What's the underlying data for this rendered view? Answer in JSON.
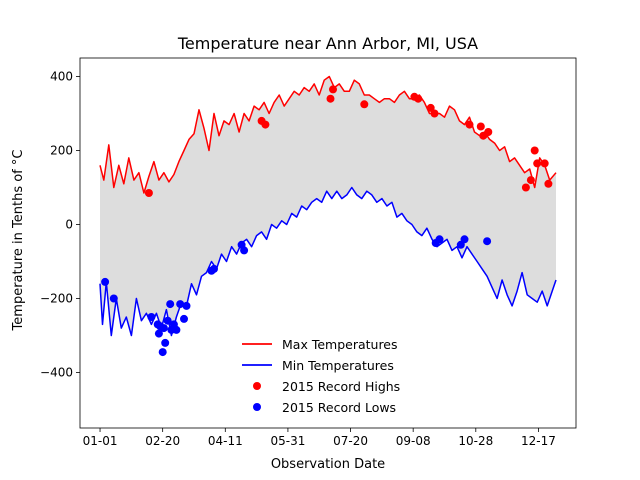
{
  "chart_data": {
    "type": "line",
    "title": "Temperature near Ann Arbor, MI, USA",
    "xlabel": "Observation Date",
    "ylabel": "Temperature in Tenths of °C",
    "x_ticks": [
      "01-01",
      "02-20",
      "04-11",
      "05-31",
      "07-20",
      "09-08",
      "10-28",
      "12-17"
    ],
    "x_tick_days": [
      1,
      51,
      101,
      151,
      201,
      251,
      301,
      351
    ],
    "xlim": [
      -15,
      381
    ],
    "y_ticks": [
      -400,
      -200,
      0,
      200,
      400
    ],
    "ylim": [
      -550,
      450
    ],
    "grid": false,
    "legend_position": "lower center",
    "fill_between": {
      "color": "#dddddd"
    },
    "series": [
      {
        "name": "Max Temperatures",
        "kind": "line",
        "color": "#ff0000",
        "x": [
          1,
          4,
          8,
          12,
          16,
          20,
          24,
          28,
          32,
          36,
          40,
          44,
          48,
          52,
          56,
          60,
          64,
          68,
          72,
          76,
          80,
          84,
          88,
          92,
          96,
          100,
          104,
          108,
          112,
          116,
          120,
          124,
          128,
          132,
          136,
          140,
          144,
          148,
          152,
          156,
          160,
          164,
          168,
          172,
          176,
          180,
          184,
          188,
          192,
          196,
          200,
          204,
          208,
          212,
          216,
          220,
          224,
          228,
          232,
          236,
          240,
          244,
          248,
          252,
          256,
          260,
          264,
          268,
          272,
          276,
          280,
          284,
          288,
          292,
          296,
          300,
          304,
          308,
          312,
          316,
          320,
          324,
          328,
          332,
          336,
          340,
          344,
          348,
          352,
          356,
          360,
          365
        ],
        "values": [
          160,
          120,
          215,
          100,
          160,
          110,
          180,
          120,
          140,
          85,
          130,
          170,
          120,
          140,
          115,
          135,
          170,
          200,
          230,
          245,
          310,
          260,
          200,
          300,
          240,
          280,
          270,
          300,
          250,
          300,
          280,
          320,
          310,
          330,
          300,
          330,
          350,
          320,
          340,
          360,
          350,
          370,
          360,
          380,
          350,
          390,
          400,
          370,
          380,
          360,
          360,
          390,
          380,
          350,
          350,
          340,
          330,
          340,
          340,
          330,
          350,
          360,
          340,
          340,
          350,
          330,
          300,
          300,
          300,
          290,
          320,
          310,
          280,
          270,
          290,
          250,
          240,
          250,
          230,
          220,
          200,
          210,
          170,
          180,
          160,
          140,
          150,
          100,
          180,
          160,
          120,
          140
        ]
      },
      {
        "name": "Min Temperatures",
        "kind": "line",
        "color": "#0000ff",
        "x": [
          1,
          3,
          6,
          10,
          14,
          18,
          22,
          26,
          30,
          34,
          38,
          42,
          46,
          50,
          54,
          58,
          62,
          66,
          70,
          74,
          78,
          82,
          86,
          90,
          94,
          98,
          102,
          106,
          110,
          114,
          118,
          122,
          126,
          130,
          134,
          138,
          142,
          146,
          150,
          154,
          158,
          162,
          166,
          170,
          174,
          178,
          182,
          186,
          190,
          194,
          198,
          202,
          206,
          210,
          214,
          218,
          222,
          226,
          230,
          234,
          238,
          242,
          246,
          250,
          254,
          258,
          262,
          266,
          270,
          274,
          278,
          282,
          286,
          290,
          294,
          298,
          302,
          306,
          310,
          314,
          318,
          322,
          326,
          330,
          334,
          338,
          342,
          346,
          350,
          354,
          358,
          362,
          365
        ],
        "values": [
          -160,
          -270,
          -155,
          -300,
          -200,
          -280,
          -250,
          -300,
          -200,
          -260,
          -240,
          -270,
          -240,
          -280,
          -230,
          -300,
          -250,
          -210,
          -220,
          -160,
          -190,
          -140,
          -130,
          -100,
          -120,
          -80,
          -100,
          -60,
          -80,
          -50,
          -40,
          -60,
          -30,
          -20,
          -40,
          0,
          -10,
          10,
          0,
          30,
          20,
          50,
          40,
          60,
          70,
          60,
          90,
          70,
          90,
          70,
          80,
          100,
          80,
          70,
          90,
          80,
          60,
          70,
          50,
          60,
          20,
          30,
          10,
          0,
          -20,
          -30,
          -10,
          -40,
          -60,
          -50,
          -40,
          -70,
          -60,
          -90,
          -60,
          -80,
          -100,
          -120,
          -140,
          -170,
          -200,
          -150,
          -190,
          -220,
          -180,
          -130,
          -190,
          -200,
          -210,
          -180,
          -220,
          -180,
          -150
        ]
      },
      {
        "name": "2015 Record Highs",
        "kind": "scatter",
        "color": "#ff0000",
        "x": [
          40,
          130,
          133,
          185,
          187,
          212,
          252,
          255,
          265,
          268,
          296,
          305,
          307,
          311,
          341,
          345,
          348,
          350,
          356,
          359
        ],
        "values": [
          85,
          280,
          270,
          340,
          365,
          325,
          345,
          340,
          315,
          300,
          270,
          265,
          240,
          250,
          100,
          120,
          200,
          165,
          165,
          110
        ]
      },
      {
        "name": "2015 Record Lows",
        "kind": "scatter",
        "color": "#0000ff",
        "x": [
          5,
          12,
          42,
          47,
          48,
          49,
          51,
          52,
          53,
          55,
          57,
          58,
          60,
          62,
          65,
          68,
          70,
          90,
          92,
          114,
          116,
          269,
          272,
          289,
          292,
          310
        ],
        "values": [
          -155,
          -200,
          -250,
          -270,
          -295,
          -275,
          -345,
          -280,
          -320,
          -260,
          -215,
          -285,
          -270,
          -285,
          -215,
          -255,
          -220,
          -125,
          -120,
          -55,
          -70,
          -50,
          -40,
          -55,
          -40,
          -45
        ]
      }
    ]
  }
}
